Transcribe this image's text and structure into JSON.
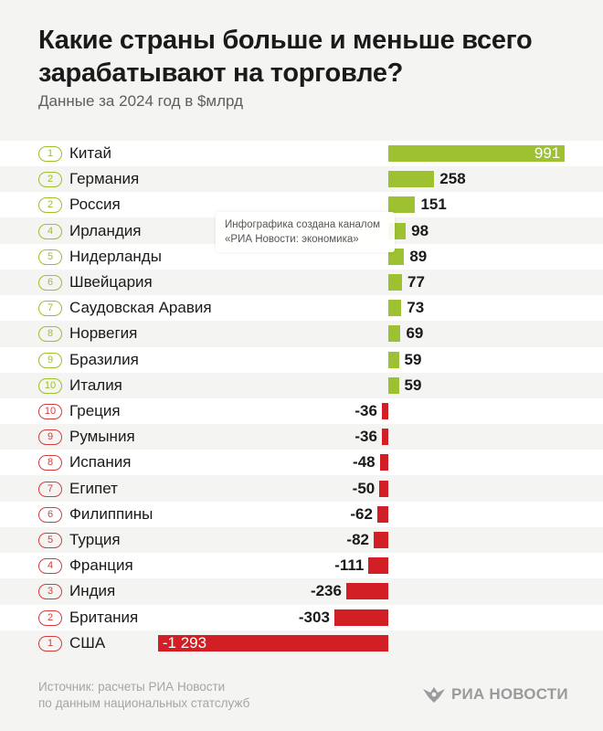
{
  "title": "Какие страны больше и меньше всего зарабатывают на торговле?",
  "subtitle": "Данные за 2024 год в $млрд",
  "tooltip": {
    "line1": "Инфографика создана каналом",
    "line2": "«РИА Новости: экономика»"
  },
  "source": {
    "line1": "Источник: расчеты РИА Новости",
    "line2": "по данным национальных статслужб"
  },
  "logo": {
    "text": "РИА НОВОСТИ",
    "icon": "ria-eagle-icon"
  },
  "colors": {
    "positive": "#9dc130",
    "negative": "#d21f25",
    "rank_positive": "#9cbf2a",
    "rank_negative": "#d23c3c"
  },
  "chart_data": {
    "type": "bar",
    "orientation": "horizontal",
    "unit": "$млрд",
    "rows": [
      {
        "rank": "1",
        "name": "Китай",
        "value": 991,
        "label": "991"
      },
      {
        "rank": "2",
        "name": "Германия",
        "value": 258,
        "label": "258"
      },
      {
        "rank": "2",
        "name": "Россия",
        "value": 151,
        "label": "151"
      },
      {
        "rank": "4",
        "name": "Ирландия",
        "value": 98,
        "label": "98"
      },
      {
        "rank": "5",
        "name": "Нидерланды",
        "value": 89,
        "label": "89"
      },
      {
        "rank": "6",
        "name": "Швейцария",
        "value": 77,
        "label": "77"
      },
      {
        "rank": "7",
        "name": "Саудовская Аравия",
        "value": 73,
        "label": "73"
      },
      {
        "rank": "8",
        "name": "Норвегия",
        "value": 69,
        "label": "69"
      },
      {
        "rank": "9",
        "name": "Бразилия",
        "value": 59,
        "label": "59"
      },
      {
        "rank": "10",
        "name": "Италия",
        "value": 59,
        "label": "59"
      },
      {
        "rank": "10",
        "name": "Греция",
        "value": -36,
        "label": "-36"
      },
      {
        "rank": "9",
        "name": "Румыния",
        "value": -36,
        "label": "-36"
      },
      {
        "rank": "8",
        "name": "Испания",
        "value": -48,
        "label": "-48"
      },
      {
        "rank": "7",
        "name": "Египет",
        "value": -50,
        "label": "-50"
      },
      {
        "rank": "6",
        "name": "Филиппины",
        "value": -62,
        "label": "-62"
      },
      {
        "rank": "5",
        "name": "Турция",
        "value": -82,
        "label": "-82"
      },
      {
        "rank": "4",
        "name": "Франция",
        "value": -111,
        "label": "-111"
      },
      {
        "rank": "3",
        "name": "Индия",
        "value": -236,
        "label": "-236"
      },
      {
        "rank": "2",
        "name": "Британия",
        "value": -303,
        "label": "-303"
      },
      {
        "rank": "1",
        "name": "США",
        "value": -1293,
        "label": "-1 293"
      }
    ]
  }
}
